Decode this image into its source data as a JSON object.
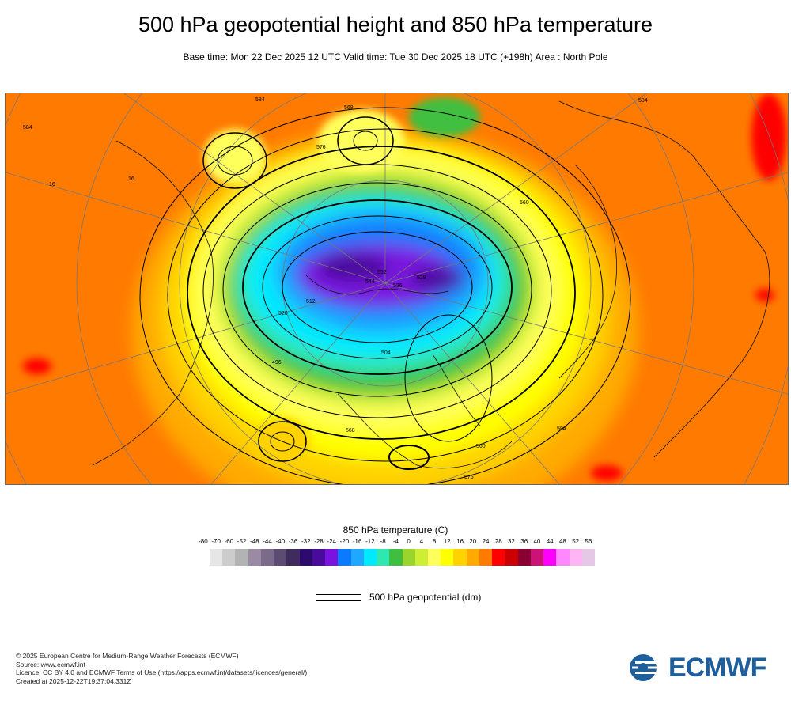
{
  "title": "500 hPa geopotential height and 850 hPa temperature",
  "subtitle": "Base time: Mon 22 Dec 2025 12 UTC Valid time: Tue 30 Dec 2025 18 UTC (+198h) Area : North Pole",
  "map": {
    "projection": "north polar stereographic",
    "contour_labels_dm": [
      "584",
      "584",
      "584",
      "568",
      "576",
      "560",
      "552",
      "544",
      "536",
      "528",
      "520",
      "512",
      "504",
      "496",
      "560",
      "568",
      "576",
      "584",
      "16",
      "16"
    ]
  },
  "temperature_legend": {
    "title": "850 hPa temperature (C)",
    "ticks": [
      "-80",
      "-70",
      "-60",
      "-52",
      "-48",
      "-44",
      "-40",
      "-36",
      "-32",
      "-28",
      "-24",
      "-20",
      "-16",
      "-12",
      "-8",
      "-4",
      "0",
      "4",
      "8",
      "12",
      "16",
      "20",
      "24",
      "28",
      "32",
      "36",
      "40",
      "44",
      "48",
      "52",
      "56"
    ],
    "colors": [
      "#e6e6e6",
      "#cccccc",
      "#b3b3b3",
      "#9b8aa3",
      "#7b6a8a",
      "#5c4b72",
      "#3f2b5e",
      "#2d0a6e",
      "#4a0a9c",
      "#7a12e0",
      "#0a7aff",
      "#1fa8ff",
      "#00eaff",
      "#2ee8b0",
      "#3fbf3f",
      "#9bd42b",
      "#ccee33",
      "#ffff5c",
      "#ffff00",
      "#ffd200",
      "#ffaa00",
      "#ff7a00",
      "#ff0000",
      "#cc0000",
      "#8b0033",
      "#cc1177",
      "#ff00ff",
      "#ff88ff",
      "#ffb5f5",
      "#e6c8e6"
    ]
  },
  "geopotential_legend": {
    "label": "500 hPa geopotential (dm)"
  },
  "credits": [
    "© 2025 European Centre for Medium-Range Weather Forecasts (ECMWF)",
    "Source: www.ecmwf.int",
    "Licence: CC BY 4.0 and ECMWF Terms of Use (https://apps.ecmwf.int/datasets/licences/general/)",
    "Created at 2025-12-22T19:37:04.331Z"
  ],
  "logo": {
    "text": "ECMWF",
    "color": "#1d5e9c"
  }
}
